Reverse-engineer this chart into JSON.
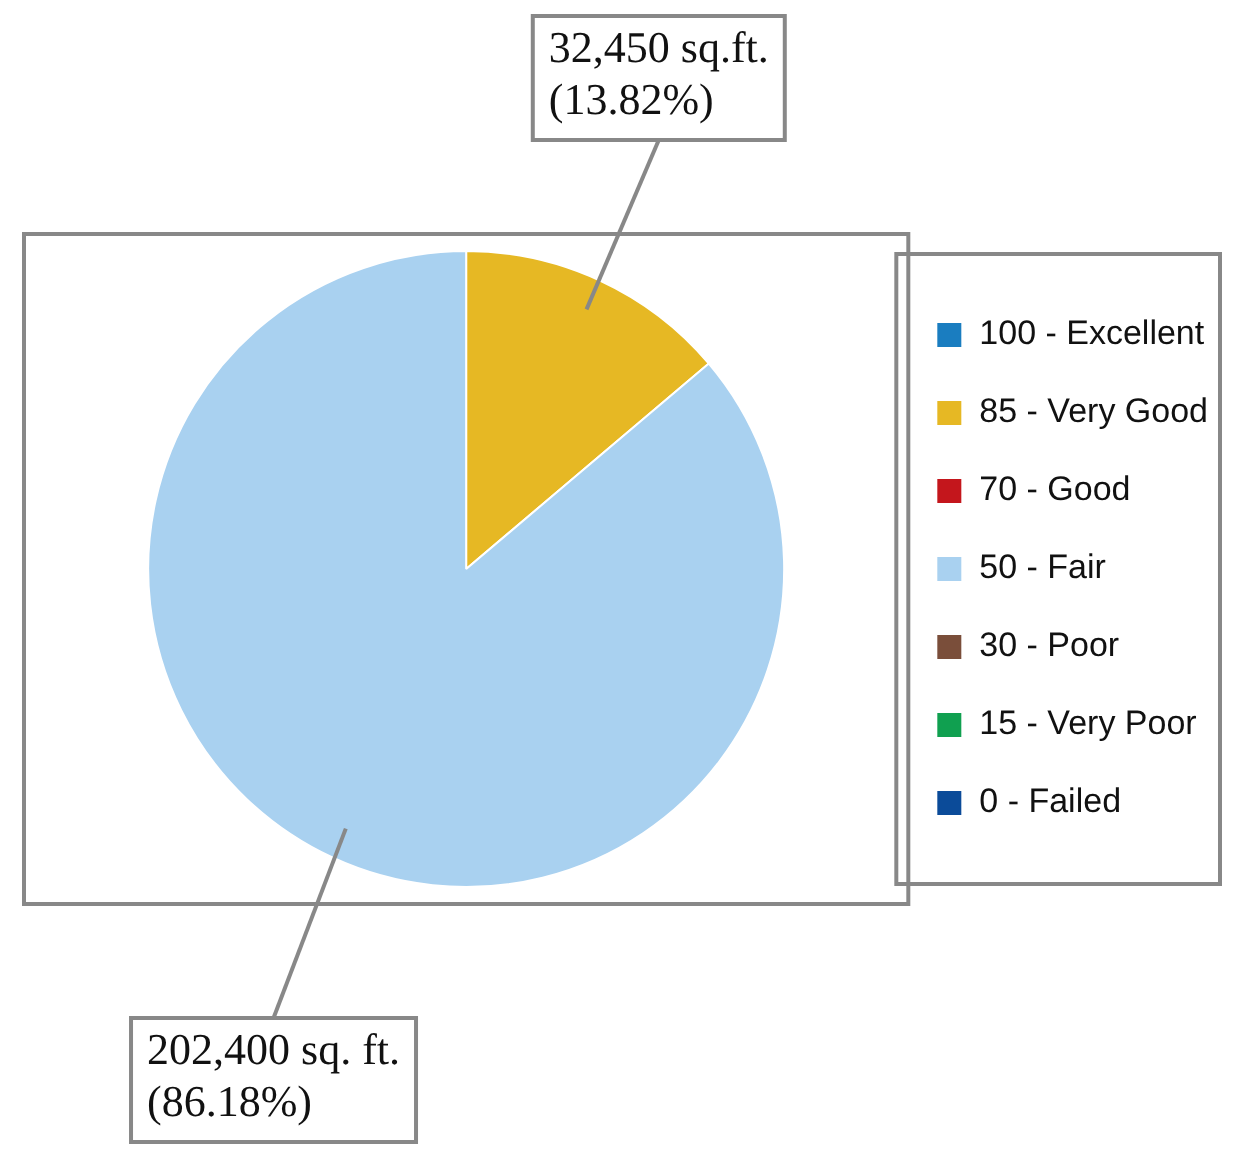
{
  "chart_data": {
    "type": "pie",
    "categories": [
      "100 - Excellent",
      "85 - Very Good",
      "70 - Good",
      "50 - Fair",
      "30 - Poor",
      "15 - Very Poor",
      "0 - Failed"
    ],
    "values": [
      0,
      32450,
      0,
      202400,
      0,
      0,
      0
    ],
    "colors": [
      "#1a7dc0",
      "#e6b824",
      "#c4161c",
      "#a9d1f0",
      "#7a4e3a",
      "#10a050",
      "#0b4b99"
    ],
    "value_labels": [
      null,
      "32,450 sq.ft.\n(13.82%)",
      null,
      "202,400 sq. ft.\n(86.18%)",
      null,
      null,
      null
    ],
    "legend": "right"
  }
}
